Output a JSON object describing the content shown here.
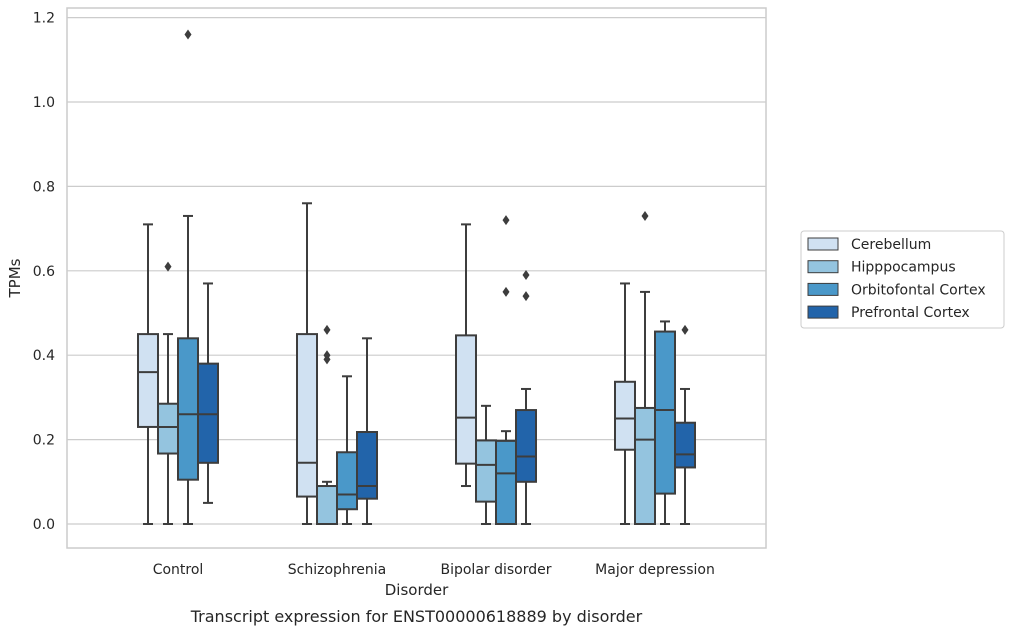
{
  "chart_data": {
    "type": "box",
    "xlabel": "Disorder",
    "ylabel": "TPMs",
    "caption": "Transcript expression for ENST00000618889 by disorder",
    "ylim": [
      -0.055,
      1.225
    ],
    "yticks": [
      "0.0",
      "0.2",
      "0.4",
      "0.6",
      "0.8",
      "1.0",
      "1.2"
    ],
    "grid": "horizontal",
    "legend_position": "right",
    "categories": [
      "Control",
      "Schizophrenia",
      "Bipolar disorder",
      "Major depression"
    ],
    "series": [
      {
        "name": "Cerebellum",
        "color": "#d0e1f2",
        "boxes": [
          {
            "whislo": 0.0,
            "q1": 0.23,
            "med": 0.36,
            "q3": 0.45,
            "whishi": 0.71,
            "fliers": []
          },
          {
            "whislo": 0.0,
            "q1": 0.065,
            "med": 0.145,
            "q3": 0.45,
            "whishi": 0.76,
            "fliers": []
          },
          {
            "whislo": 0.09,
            "q1": 0.143,
            "med": 0.252,
            "q3": 0.447,
            "whishi": 0.71,
            "fliers": []
          },
          {
            "whislo": 0.0,
            "q1": 0.176,
            "med": 0.25,
            "q3": 0.337,
            "whishi": 0.57,
            "fliers": []
          }
        ]
      },
      {
        "name": "Hipppocampus",
        "color": "#94c4df",
        "boxes": [
          {
            "whislo": 0.0,
            "q1": 0.167,
            "med": 0.23,
            "q3": 0.285,
            "whishi": 0.45,
            "fliers": [
              0.61
            ]
          },
          {
            "whislo": 0.0,
            "q1": 0.0,
            "med": 0.0,
            "q3": 0.09,
            "whishi": 0.1,
            "fliers": [
              0.39,
              0.4,
              0.46
            ]
          },
          {
            "whislo": 0.0,
            "q1": 0.053,
            "med": 0.14,
            "q3": 0.198,
            "whishi": 0.28,
            "fliers": []
          },
          {
            "whislo": 0.0,
            "q1": 0.0,
            "med": 0.2,
            "q3": 0.275,
            "whishi": 0.55,
            "fliers": [
              0.73
            ]
          }
        ]
      },
      {
        "name": "Orbitofontal Cortex",
        "color": "#4a98c9",
        "boxes": [
          {
            "whislo": 0.0,
            "q1": 0.105,
            "med": 0.26,
            "q3": 0.44,
            "whishi": 0.73,
            "fliers": [
              1.16
            ]
          },
          {
            "whislo": 0.0,
            "q1": 0.035,
            "med": 0.07,
            "q3": 0.17,
            "whishi": 0.35,
            "fliers": []
          },
          {
            "whislo": 0.0,
            "q1": 0.0,
            "med": 0.12,
            "q3": 0.197,
            "whishi": 0.22,
            "fliers": [
              0.55,
              0.72
            ]
          },
          {
            "whislo": 0.0,
            "q1": 0.072,
            "med": 0.27,
            "q3": 0.456,
            "whishi": 0.48,
            "fliers": []
          }
        ]
      },
      {
        "name": "Prefrontal Cortex",
        "color": "#2264aa",
        "boxes": [
          {
            "whislo": 0.05,
            "q1": 0.145,
            "med": 0.26,
            "q3": 0.38,
            "whishi": 0.57,
            "fliers": []
          },
          {
            "whislo": 0.0,
            "q1": 0.06,
            "med": 0.09,
            "q3": 0.218,
            "whishi": 0.44,
            "fliers": []
          },
          {
            "whislo": 0.0,
            "q1": 0.1,
            "med": 0.16,
            "q3": 0.27,
            "whishi": 0.32,
            "fliers": [
              0.54,
              0.59
            ]
          },
          {
            "whislo": 0.0,
            "q1": 0.134,
            "med": 0.165,
            "q3": 0.24,
            "whishi": 0.32,
            "fliers": [
              0.46
            ]
          }
        ]
      }
    ]
  }
}
